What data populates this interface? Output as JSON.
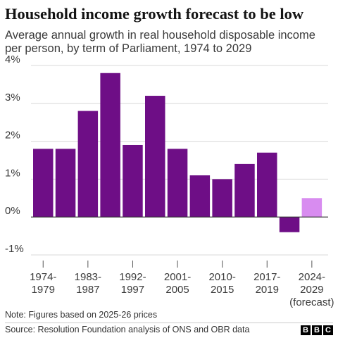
{
  "chart_data": {
    "type": "bar",
    "title": "Household income growth forecast to be low",
    "subtitle": "Average annual growth in real household disposable income per person, by term of Parliament, 1974 to 2029",
    "ylim": [
      -1,
      4
    ],
    "yticks": [
      {
        "value": 4,
        "label": "4%"
      },
      {
        "value": 3,
        "label": "3%"
      },
      {
        "value": 2,
        "label": "2%"
      },
      {
        "value": 1,
        "label": "1%"
      },
      {
        "value": 0,
        "label": "0%"
      },
      {
        "value": -1,
        "label": "-1%"
      }
    ],
    "grid": true,
    "bars": [
      {
        "value": 1.8,
        "forecast": false
      },
      {
        "value": 1.8,
        "forecast": false
      },
      {
        "value": 2.8,
        "forecast": false
      },
      {
        "value": 3.8,
        "forecast": false
      },
      {
        "value": 1.9,
        "forecast": false
      },
      {
        "value": 3.2,
        "forecast": false
      },
      {
        "value": 1.8,
        "forecast": false
      },
      {
        "value": 1.1,
        "forecast": false
      },
      {
        "value": 1.0,
        "forecast": false
      },
      {
        "value": 1.4,
        "forecast": false
      },
      {
        "value": 1.7,
        "forecast": false
      },
      {
        "value": -0.4,
        "forecast": false
      },
      {
        "value": 0.5,
        "forecast": true
      }
    ],
    "xlabels": [
      {
        "bar": 0.5,
        "lines": [
          "1974-",
          "1979"
        ]
      },
      {
        "bar": 2.5,
        "lines": [
          "1983-",
          "1987"
        ]
      },
      {
        "bar": 4.5,
        "lines": [
          "1992-",
          "1997"
        ]
      },
      {
        "bar": 6.5,
        "lines": [
          "2001-",
          "2005"
        ]
      },
      {
        "bar": 8.5,
        "lines": [
          "2010-",
          "2015"
        ]
      },
      {
        "bar": 10.5,
        "lines": [
          "2017-",
          "2019"
        ]
      },
      {
        "bar": 12.5,
        "lines": [
          "2024-",
          "2029",
          "(forecast)"
        ]
      }
    ],
    "colors": {
      "actual": "#6e0e86",
      "forecast": "#d88cf0",
      "grid": "#d8d8d8",
      "zero": "#333333"
    }
  },
  "note": "Note: Figures based on 2025-26 prices",
  "source": "Source: Resolution Foundation analysis of ONS and OBR data",
  "logo": [
    "B",
    "B",
    "C"
  ]
}
